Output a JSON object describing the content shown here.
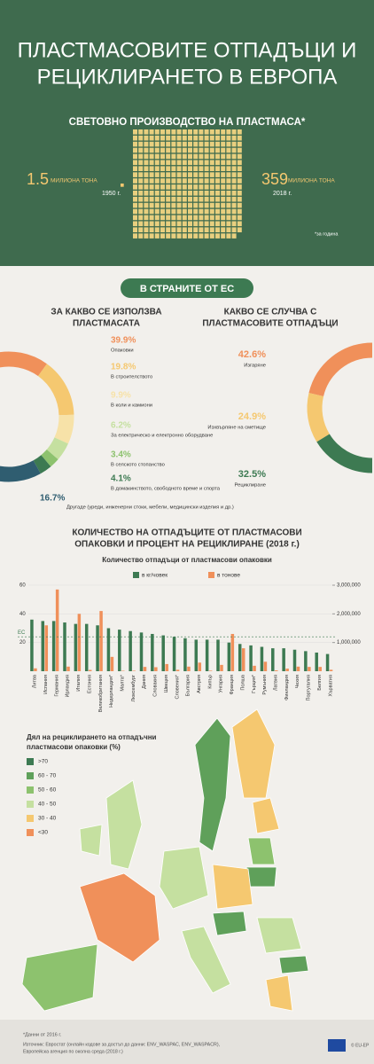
{
  "header": {
    "title_lines": [
      "ПЛАСТМАСОВИТЕ ОТПАДЪЦИ И",
      "РЕЦИКЛИРАНЕТО В ЕВРОПА"
    ]
  },
  "production": {
    "title": "СВЕТОВНО ПРОИЗВОДСТВО НА ПЛАСТМАСА*",
    "start": {
      "value": 1.5,
      "unit": "МИЛИОНА ТОНА",
      "year": "1950 г."
    },
    "end": {
      "value": 359,
      "unit": "МИЛИОНА ТОНА",
      "year": "2018 г."
    },
    "note": "*за година"
  },
  "section_title": "В СТРАНИТЕ ОТ ЕС",
  "uses": {
    "title_lines": [
      "ЗА КАКВО СЕ ИЗПОЛЗВА",
      "ПЛАСТМАСАТА"
    ],
    "items": [
      {
        "value": 39.9,
        "label": "39.9%",
        "name": "Опаковки",
        "color": "#f0905a"
      },
      {
        "value": 19.8,
        "label": "19.8%",
        "name": "В строителството",
        "color": "#f5c870"
      },
      {
        "value": 9.9,
        "label": "9.9%",
        "name": "В коли и камиони",
        "color": "#f7e2a8"
      },
      {
        "value": 6.2,
        "label": "6.2%",
        "name": "За електрическо и електронно оборудване",
        "color": "#c5e0a0"
      },
      {
        "value": 3.4,
        "label": "3.4%",
        "name": "В селското стопанство",
        "color": "#8dc26e"
      },
      {
        "value": 4.1,
        "label": "4.1%",
        "name": "В домакинството, свободното време и спорта",
        "color": "#3d7a52"
      },
      {
        "value": 16.7,
        "label": "16.7%",
        "name": "Другаде (уреди, инженерни стоки, мебели, медицински изделия и др.)",
        "color": "#2f5d70"
      }
    ]
  },
  "waste": {
    "title_lines": [
      "КАКВО СЕ СЛУЧВА С",
      "ПЛАСТМАСОВИТЕ ОТПАДЪЦИ"
    ],
    "items": [
      {
        "value": 42.6,
        "label": "42.6%",
        "name": "Изгаряне",
        "color": "#f0905a"
      },
      {
        "value": 24.9,
        "label": "24.9%",
        "name": "Изхвърляне на сметище",
        "color": "#f5c870"
      },
      {
        "value": 32.5,
        "label": "32.5%",
        "name": "Рециклиране",
        "color": "#3d7a52"
      }
    ]
  },
  "chart_data": {
    "type": "bar",
    "title_lines": [
      "КОЛИЧЕСТВО НА ОТПАДЪЦИТЕ ОТ ПЛАСТМАСОВИ",
      "ОПАКОВКИ И ПРОЦЕНТ НА РЕЦИКЛИРАНЕ (2018 г.)"
    ],
    "subtitle": "Количество отпадъци от пластмасови опаковки",
    "categories": [
      "Литва",
      "Испания",
      "Германия",
      "Ирландия",
      "Италия",
      "Естония",
      "Великобритания",
      "Нидерландия*",
      "Малта*",
      "Люксембург",
      "Дания",
      "Словакия",
      "Швеция",
      "Словения*",
      "България",
      "Австрия",
      "Кипър",
      "Унгария",
      "Франция",
      "Полша",
      "Гърция*",
      "Румъния",
      "Латвия",
      "Финландия",
      "Чехия",
      "Португалия",
      "Белгия",
      "Хърватия"
    ],
    "series": [
      {
        "name": "в кг/човек",
        "color": "#3d7a52",
        "values": [
          36,
          35,
          35,
          34,
          33,
          33,
          32,
          30,
          29,
          28,
          27,
          26,
          25,
          24,
          23,
          22,
          22,
          22,
          20,
          19,
          18,
          17,
          16,
          16,
          15,
          14,
          13,
          12
        ]
      },
      {
        "name": "в тонове",
        "color": "#f0905a",
        "axis": "y2",
        "values": [
          100000,
          1600000,
          2850000,
          160000,
          2000000,
          45000,
          2100000,
          500000,
          15000,
          17000,
          150000,
          140000,
          250000,
          50000,
          160000,
          300000,
          20000,
          220000,
          1300000,
          800000,
          190000,
          330000,
          30000,
          90000,
          160000,
          150000,
          150000,
          50000
        ]
      }
    ],
    "ylim": [
      0,
      60
    ],
    "yticks": [
      20,
      40,
      60
    ],
    "y2lim": [
      0,
      3000000
    ],
    "y2ticks": [
      {
        "value": 1000000,
        "label": "1,000,000"
      },
      {
        "value": 2000000,
        "label": "2,000,000"
      },
      {
        "value": 3000000,
        "label": "3,000,000"
      }
    ],
    "reference": {
      "value": 24,
      "label": "ЕС"
    }
  },
  "map": {
    "title_lines": [
      "Дял на рециклирането на отпадъчни",
      "пластмасови опаковки (%)"
    ],
    "legend": [
      {
        "label": ">70",
        "color": "#3d7a52"
      },
      {
        "label": "60 - 70",
        "color": "#5fa05a"
      },
      {
        "label": "50 - 60",
        "color": "#8dc26e"
      },
      {
        "label": "40 - 50",
        "color": "#c5e0a0"
      },
      {
        "label": "30 - 40",
        "color": "#f5c870"
      },
      {
        "label": "<30",
        "color": "#f0905a"
      }
    ]
  },
  "footer": {
    "note": "*Данни от 2016 г.",
    "source_lines": [
      "Източник: Евростат (онлайн кодове за достъп до данни: ENV_WASPAC, ENV_WASPACR),",
      "Европейска агенция по околна среда (2018 г.)"
    ],
    "copyright": "© EU-EP"
  }
}
